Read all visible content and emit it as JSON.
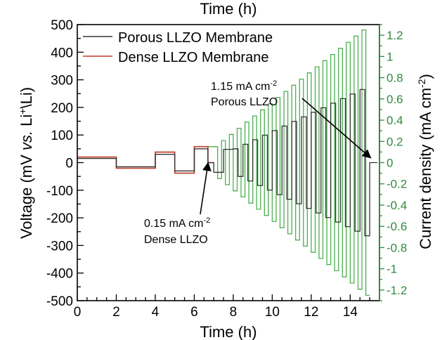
{
  "chart_data": {
    "type": "line",
    "x_axis": {
      "label": "Time (h)",
      "top_label": "Time (h)",
      "range": [
        0,
        15.5
      ],
      "ticks": [
        0,
        2,
        4,
        6,
        8,
        10,
        12,
        14
      ]
    },
    "y_left": {
      "label_parts": [
        "Voltage (mV ",
        "vs.",
        " Li",
        "+",
        "\\Li)"
      ],
      "range": [
        -500,
        500
      ],
      "ticks": [
        -500,
        -400,
        -300,
        -200,
        -100,
        0,
        100,
        200,
        300,
        400,
        500
      ]
    },
    "y_right": {
      "label": "Current density (mA cm",
      "label_sup": "-2",
      "label_close": ")",
      "color": "#2e8b3e",
      "range": [
        -1.3,
        1.3
      ],
      "ticks": [
        -1.2,
        -1,
        -0.8,
        -0.6,
        -0.4,
        -0.2,
        0,
        0.2,
        0.4,
        0.6,
        0.8,
        1,
        1.2
      ],
      "tick_labels": [
        "-1.2",
        "-1",
        "-0.8",
        "-0.6",
        "-0.4",
        "-0.2",
        "0",
        "0.2",
        "0.4",
        "0.6",
        "0.8",
        "1",
        "1.2"
      ]
    },
    "legend": {
      "placement": "top-left",
      "entries": [
        {
          "name": "Porous LLZO Membrane",
          "color": "#333333"
        },
        {
          "name": "Dense LLZO Membrane",
          "color": "#c0392b"
        }
      ]
    },
    "series": [
      {
        "name": "Porous LLZO Membrane",
        "color": "#333333",
        "segments": [
          {
            "t0": 0,
            "t1": 2,
            "v": 15
          },
          {
            "t0": 2,
            "t1": 4,
            "v": -15
          },
          {
            "t0": 4,
            "t1": 5,
            "v": 30
          },
          {
            "t0": 5,
            "t1": 6,
            "v": -30
          },
          {
            "t0": 6,
            "t1": 6.7,
            "v": 50
          },
          {
            "t0": 6.7,
            "t1": 7,
            "v": 0
          },
          {
            "t0": 7,
            "t1": 7.5,
            "v": -35
          },
          {
            "t0": 7.5,
            "t1": 8,
            "v": 48
          }
        ],
        "cycles": {
          "t_start": 8,
          "t_end": 15,
          "v_start": 50,
          "v_end": 265,
          "period": 0.5
        },
        "tail": {
          "t0": 15,
          "t1": 15.4,
          "v": 0
        }
      },
      {
        "name": "Dense LLZO Membrane",
        "color": "#c0392b",
        "segments": [
          {
            "t0": 0,
            "t1": 2,
            "v": 20
          },
          {
            "t0": 2,
            "t1": 4,
            "v": -20
          },
          {
            "t0": 4,
            "t1": 5,
            "v": 38
          },
          {
            "t0": 5,
            "t1": 6,
            "v": -38
          },
          {
            "t0": 6,
            "t1": 6.7,
            "v": 58
          },
          {
            "t0": 6.7,
            "t1": 7.0,
            "v": 0
          }
        ]
      },
      {
        "name": "Current density",
        "axis": "right",
        "color": "#4caf50",
        "segments": [
          {
            "t0": 0,
            "t1": 2,
            "v": 0.05
          },
          {
            "t0": 2,
            "t1": 4,
            "v": -0.05
          },
          {
            "t0": 4,
            "t1": 5,
            "v": 0.1
          },
          {
            "t0": 5,
            "t1": 6,
            "v": -0.1
          },
          {
            "t0": 6,
            "t1": 7,
            "v": 0.15
          }
        ],
        "cycles": {
          "t_start": 7,
          "t_end": 15.2,
          "i_start": 0.15,
          "i_end": 1.25,
          "period": 0.4
        }
      }
    ],
    "annotations": [
      {
        "lines": [
          "1.15 mA cm",
          "Porous LLZO"
        ],
        "sup": "-2",
        "arrow_to": {
          "t": 15.0,
          "v": 0
        }
      },
      {
        "lines": [
          "0.15 mA cm",
          "Dense LLZO"
        ],
        "sup": "-2",
        "arrow_to": {
          "t": 6.7,
          "v": 10
        }
      }
    ],
    "grid": false
  }
}
